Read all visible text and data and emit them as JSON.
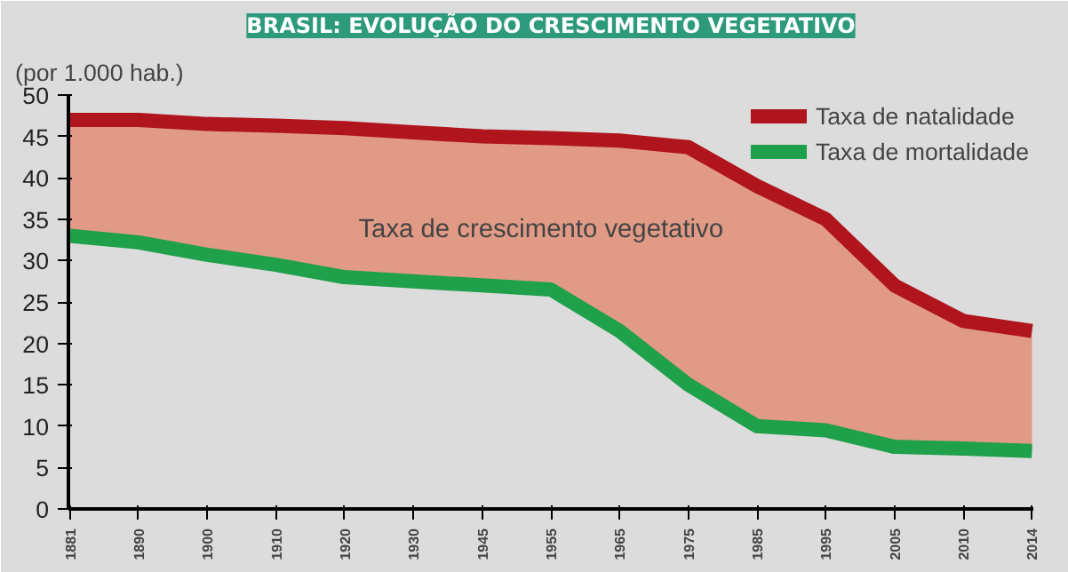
{
  "chart_data": {
    "type": "line",
    "title": "BRASIL: EVOLUÇÃO DO CRESCIMENTO VEGETATIVO",
    "ylabel": "(por 1.000 hab.)",
    "categories": [
      "1881",
      "1890",
      "1900",
      "1910",
      "1920",
      "1930",
      "1945",
      "1955",
      "1965",
      "1975",
      "1985",
      "1995",
      "2005",
      "2010",
      "2014"
    ],
    "series": [
      {
        "name": "Taxa de natalidade",
        "color": "#b0141c",
        "values": [
          47,
          47,
          46.5,
          46.3,
          46,
          45.5,
          45,
          44.8,
          44.5,
          43.7,
          39,
          35,
          27,
          22.7,
          21.5
        ],
        "lower": [
          33,
          32.2,
          30.7,
          29.5,
          28,
          27.5,
          27,
          26.5,
          21.5,
          15,
          10,
          9.5,
          7.5,
          7.3,
          7
        ],
        "upper": [
          47,
          47,
          46.5,
          46.3,
          46,
          45.5,
          45,
          44.8,
          44.5,
          43.7,
          39,
          35,
          27,
          22.7,
          21.5
        ]
      },
      {
        "name": "Taxa de mortalidade",
        "color": "#1fa04a",
        "values": [
          33,
          32.2,
          30.7,
          29.5,
          28,
          27.5,
          27,
          26.5,
          21.5,
          15,
          10,
          9.5,
          7.5,
          7.3,
          7
        ]
      }
    ],
    "annotations": [
      "Taxa de crescimento vegetativo"
    ],
    "ylim": [
      0,
      50
    ],
    "yticks": [
      0,
      5,
      10,
      15,
      20,
      25,
      30,
      35,
      40,
      45,
      50
    ],
    "legend": "top right",
    "line_style": "solid"
  }
}
